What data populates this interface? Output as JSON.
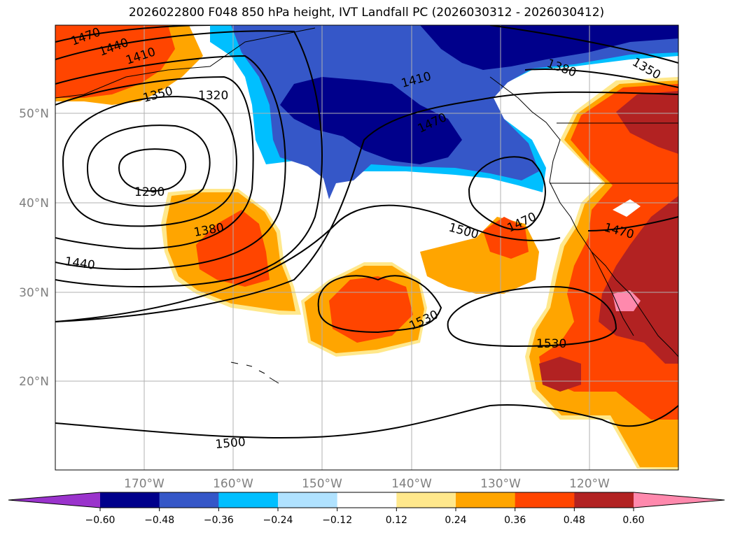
{
  "title": "2026022800 F048 850 hPa height, IVT Landfall PC (2026030312 - 2026030412)",
  "lat_labels": [
    "50°N",
    "40°N",
    "30°N",
    "20°N"
  ],
  "lon_labels": [
    "170°W",
    "160°W",
    "150°W",
    "140°W",
    "130°W",
    "120°W"
  ],
  "contour_labels": [
    "1470",
    "1440",
    "1410",
    "1350",
    "1320",
    "1290",
    "1380",
    "1440",
    "1410",
    "1470",
    "1500",
    "1470",
    "1530",
    "1530",
    "1500",
    "1380",
    "1350",
    "1470"
  ],
  "colorbar": {
    "ticks": [
      "−0.60",
      "−0.48",
      "−0.36",
      "−0.24",
      "−0.12",
      "0.12",
      "0.24",
      "0.36",
      "0.48",
      "0.60"
    ],
    "colors": [
      "#9a33cc",
      "#00008b",
      "#3557c8",
      "#00bfff",
      "#b0e2ff",
      "#ffffff",
      "#ffe88c",
      "#ffa500",
      "#ff4500",
      "#b22222",
      "#ff89ad"
    ]
  },
  "chart_data": {
    "type": "heatmap",
    "field": "IVT Landfall PC (shaded) with 850 hPa height contours",
    "lat_range": [
      10,
      60
    ],
    "lon_range": [
      -180,
      -110
    ],
    "height_contour_levels": [
      1290,
      1320,
      1350,
      1380,
      1410,
      1440,
      1470,
      1500,
      1530
    ],
    "shading_levels": [
      -0.6,
      -0.48,
      -0.36,
      -0.24,
      -0.12,
      0.12,
      0.24,
      0.36,
      0.48,
      0.6
    ]
  }
}
